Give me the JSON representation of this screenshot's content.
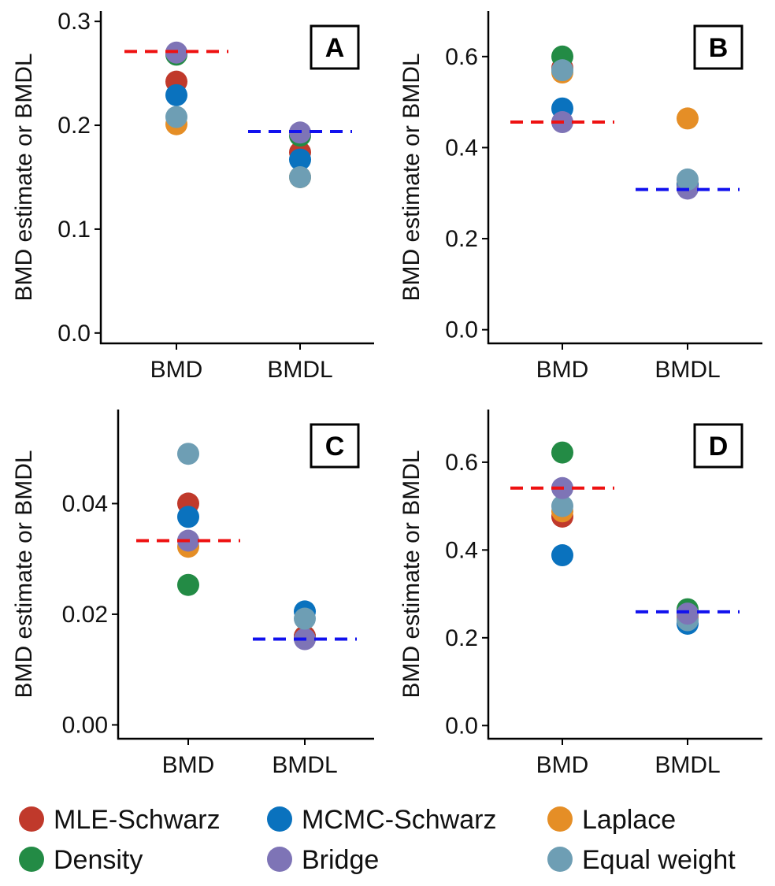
{
  "legend": [
    {
      "name": "MLE-Schwarz",
      "color": "#C0392B"
    },
    {
      "name": "MCMC-Schwarz",
      "color": "#0A72BE"
    },
    {
      "name": "Laplace",
      "color": "#E58E26"
    },
    {
      "name": "Density",
      "color": "#238B45"
    },
    {
      "name": "Bridge",
      "color": "#7E74B6"
    },
    {
      "name": "Equal weight",
      "color": "#6E9EB4"
    }
  ],
  "reference_colors": {
    "bmd": "#EE1111",
    "bmdl": "#1111EE"
  },
  "chart_data": [
    {
      "type": "scatter",
      "panel": "A",
      "ylabel": "BMD estimate or BMDL",
      "categories": [
        "BMD",
        "BMDL"
      ],
      "ylim": [
        -0.01,
        0.31
      ],
      "yticks": [
        0.0,
        0.1,
        0.2,
        0.3
      ],
      "ytick_labels": [
        "0.0",
        "0.1",
        "0.2",
        "0.3"
      ],
      "reference_lines": {
        "BMD": 0.271,
        "BMDL": 0.194
      },
      "series": [
        {
          "name": "MLE-Schwarz",
          "values": [
            0.242,
            0.174
          ]
        },
        {
          "name": "Laplace",
          "values": [
            0.201,
            0.15
          ]
        },
        {
          "name": "Density",
          "values": [
            0.268,
            0.19
          ]
        },
        {
          "name": "MCMC-Schwarz",
          "values": [
            0.229,
            0.167
          ]
        },
        {
          "name": "Equal weight",
          "values": [
            0.208,
            0.15
          ]
        },
        {
          "name": "Bridge",
          "values": [
            0.27,
            0.193
          ]
        }
      ]
    },
    {
      "type": "scatter",
      "panel": "B",
      "ylabel": "BMD estimate or BMDL",
      "categories": [
        "BMD",
        "BMDL"
      ],
      "ylim": [
        -0.03,
        0.7
      ],
      "yticks": [
        0.0,
        0.2,
        0.4,
        0.6
      ],
      "ytick_labels": [
        "0.0",
        "0.2",
        "0.4",
        "0.6"
      ],
      "reference_lines": {
        "BMD": 0.456,
        "BMDL": 0.308
      },
      "series": [
        {
          "name": "MLE-Schwarz",
          "values": [
            0.575,
            0.32
          ]
        },
        {
          "name": "Density",
          "values": [
            0.6,
            0.315
          ]
        },
        {
          "name": "Laplace",
          "values": [
            0.565,
            0.464
          ]
        },
        {
          "name": "MCMC-Schwarz",
          "values": [
            0.486,
            0.318
          ]
        },
        {
          "name": "Bridge",
          "values": [
            0.456,
            0.31
          ]
        },
        {
          "name": "Equal weight",
          "values": [
            0.57,
            0.33
          ]
        }
      ]
    },
    {
      "type": "scatter",
      "panel": "C",
      "ylabel": "BMD estimate or BMDL",
      "categories": [
        "BMD",
        "BMDL"
      ],
      "ylim": [
        -0.0025,
        0.057
      ],
      "yticks": [
        0.0,
        0.02,
        0.04
      ],
      "ytick_labels": [
        "0.00",
        "0.02",
        "0.04"
      ],
      "reference_lines": {
        "BMD": 0.0333,
        "BMDL": 0.0155
      },
      "series": [
        {
          "name": "Density",
          "values": [
            0.0253,
            0.016
          ]
        },
        {
          "name": "Laplace",
          "values": [
            0.0322,
            0.0158
          ]
        },
        {
          "name": "MLE-Schwarz",
          "values": [
            0.04,
            0.016
          ]
        },
        {
          "name": "MCMC-Schwarz",
          "values": [
            0.0376,
            0.0205
          ]
        },
        {
          "name": "Bridge",
          "values": [
            0.0333,
            0.0155
          ]
        },
        {
          "name": "Equal weight",
          "values": [
            0.049,
            0.0192
          ]
        }
      ]
    },
    {
      "type": "scatter",
      "panel": "D",
      "ylabel": "BMD estimate or BMDL",
      "categories": [
        "BMD",
        "BMDL"
      ],
      "ylim": [
        -0.03,
        0.72
      ],
      "yticks": [
        0.0,
        0.2,
        0.4,
        0.6
      ],
      "ytick_labels": [
        "0.0",
        "0.2",
        "0.4",
        "0.6"
      ],
      "reference_lines": {
        "BMD": 0.541,
        "BMDL": 0.259
      },
      "series": [
        {
          "name": "MCMC-Schwarz",
          "values": [
            0.388,
            0.232
          ]
        },
        {
          "name": "MLE-Schwarz",
          "values": [
            0.476,
            0.245
          ]
        },
        {
          "name": "Laplace",
          "values": [
            0.488,
            0.248
          ]
        },
        {
          "name": "Density",
          "values": [
            0.622,
            0.265
          ]
        },
        {
          "name": "Equal weight",
          "values": [
            0.5,
            0.24
          ]
        },
        {
          "name": "Bridge",
          "values": [
            0.541,
            0.255
          ]
        }
      ]
    }
  ]
}
